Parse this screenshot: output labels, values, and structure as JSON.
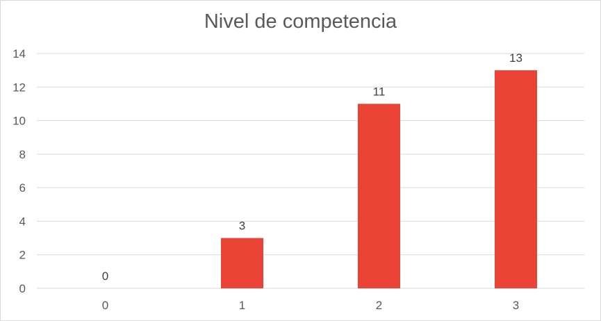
{
  "chart_data": {
    "type": "bar",
    "title": "Nivel de competencia",
    "categories": [
      "0",
      "1",
      "2",
      "3"
    ],
    "values": [
      0,
      3,
      11,
      13
    ],
    "data_labels": [
      "0",
      "3",
      "11",
      "13"
    ],
    "ylim": [
      0,
      14
    ],
    "yticks": [
      "0",
      "2",
      "4",
      "6",
      "8",
      "10",
      "12",
      "14"
    ],
    "xlabel": "",
    "ylabel": "",
    "grid": true,
    "legend": "none",
    "bar_color": "#ea4335",
    "grid_color": "#d9d9d9",
    "text_color": "#595959"
  }
}
